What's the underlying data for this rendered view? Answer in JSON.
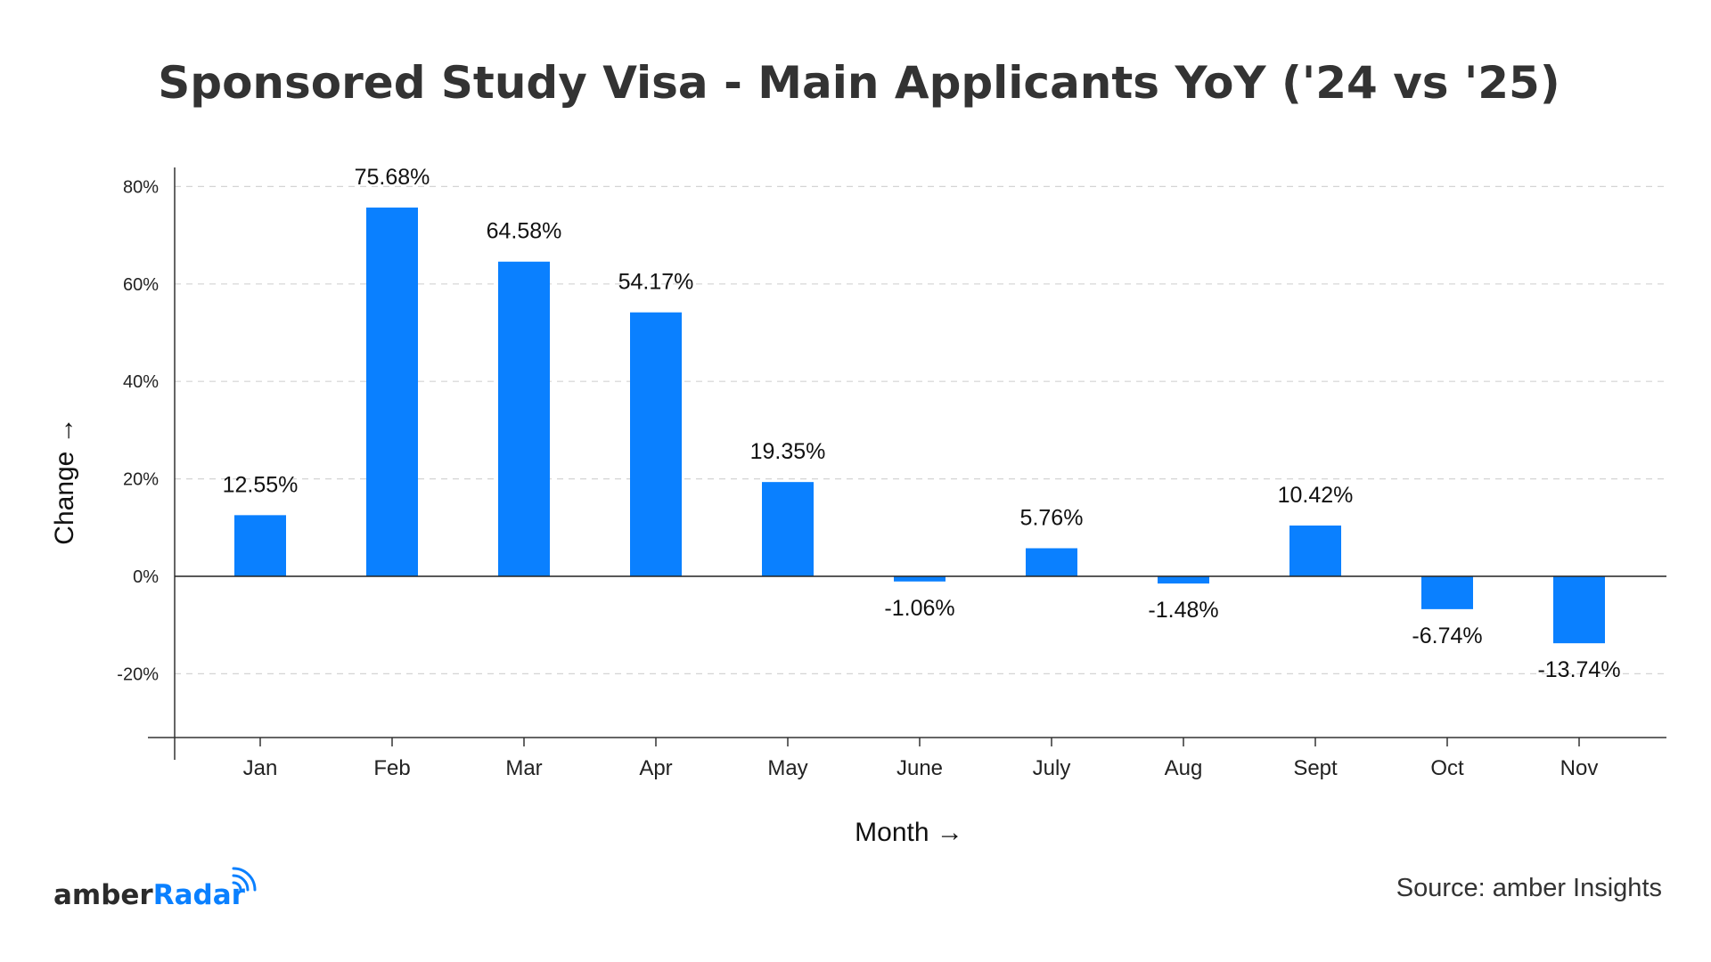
{
  "chart_data": {
    "type": "bar",
    "title": "Sponsored Study Visa - Main Applicants YoY ('24 vs '25)",
    "xlabel": "Month →",
    "ylabel": "Change →",
    "categories": [
      "Jan",
      "Feb",
      "Mar",
      "Apr",
      "May",
      "June",
      "July",
      "Aug",
      "Sept",
      "Oct",
      "Nov"
    ],
    "values": [
      12.55,
      75.68,
      64.58,
      54.17,
      19.35,
      -1.06,
      5.76,
      -1.48,
      10.42,
      -6.74,
      -13.74
    ],
    "value_labels": [
      "12.55%",
      "75.68%",
      "64.58%",
      "54.17%",
      "19.35%",
      "-1.06%",
      "5.76%",
      "-1.48%",
      "10.42%",
      "-6.74%",
      "-13.74%"
    ],
    "y_ticks": [
      -20,
      0,
      20,
      40,
      60,
      80
    ],
    "y_tick_labels": [
      "-20%",
      "0%",
      "20%",
      "40%",
      "60%",
      "80%"
    ],
    "ylim": [
      -33,
      84
    ],
    "grid": true,
    "bar_color": "#0a80ff"
  },
  "footer": {
    "source": "Source: amber Insights",
    "logo_part1": "amber",
    "logo_part2": "Radar"
  }
}
